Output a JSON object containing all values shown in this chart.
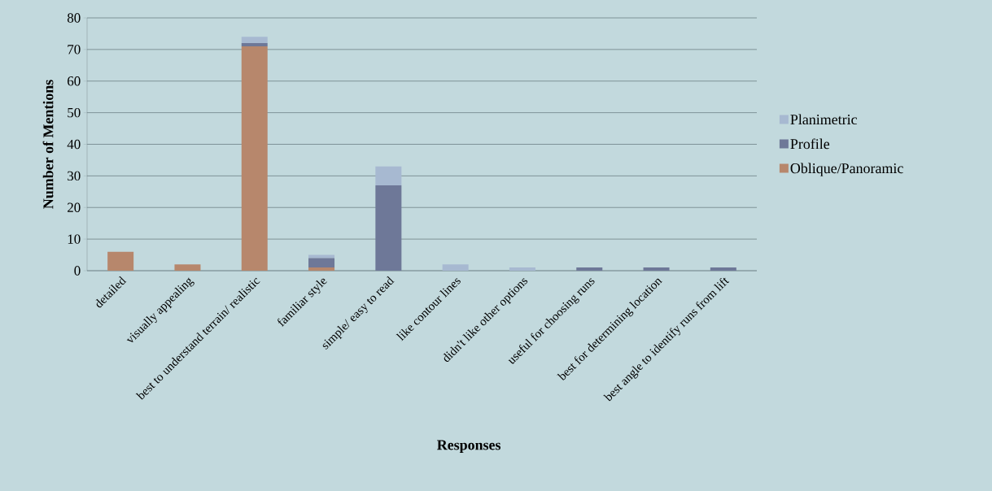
{
  "chart_data": {
    "type": "bar",
    "stacked": true,
    "xlabel": "Responses",
    "ylabel": "Number of Mentions",
    "categories": [
      "detailed",
      "visually appealing",
      "best to understand terrain/ realistic",
      "familiar style",
      "simple/ easy to read",
      "like contour lines",
      "didn't like other options",
      "useful for choosing runs",
      "best for determining location",
      "best angle to identify runs from lift"
    ],
    "series": [
      {
        "name": "Oblique/Panoramic",
        "color": "#b7876c",
        "values": [
          6,
          2,
          71,
          1,
          0,
          0,
          0,
          0,
          0,
          0
        ]
      },
      {
        "name": "Profile",
        "color": "#6e7898",
        "values": [
          0,
          0,
          1,
          3,
          27,
          0,
          0,
          1,
          1,
          1
        ]
      },
      {
        "name": "Planimetric",
        "color": "#a7b9d1",
        "values": [
          0,
          0,
          2,
          1,
          6,
          2,
          1,
          0,
          0,
          0
        ]
      }
    ],
    "ylim": [
      0,
      80
    ],
    "yticks": [
      0,
      10,
      20,
      30,
      40,
      50,
      60,
      70,
      80
    ],
    "grid": "y",
    "legend": "right"
  }
}
